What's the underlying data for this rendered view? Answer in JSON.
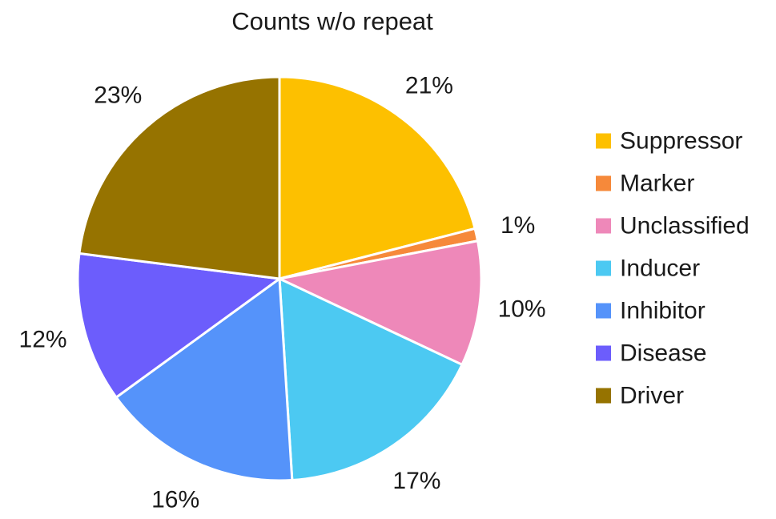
{
  "chart_data": {
    "type": "pie",
    "title": "Counts w/o repeat",
    "slices": [
      {
        "label": "Suppressor",
        "value": 21,
        "display": "21%",
        "color": "#FDC000"
      },
      {
        "label": "Marker",
        "value": 1,
        "display": "1%",
        "color": "#F6893A"
      },
      {
        "label": "Unclassified",
        "value": 10,
        "display": "10%",
        "color": "#EE88B9"
      },
      {
        "label": "Inducer",
        "value": 17,
        "display": "17%",
        "color": "#4CC9F2"
      },
      {
        "label": "Inhibitor",
        "value": 16,
        "display": "16%",
        "color": "#5593FA"
      },
      {
        "label": "Disease",
        "value": 12,
        "display": "12%",
        "color": "#6C5DFC"
      },
      {
        "label": "Driver",
        "value": 23,
        "display": "23%",
        "color": "#967300"
      }
    ],
    "start_angle": "12 o'clock",
    "direction": "clockwise",
    "legend_position": "right",
    "slice_border_color": "#ffffff"
  }
}
